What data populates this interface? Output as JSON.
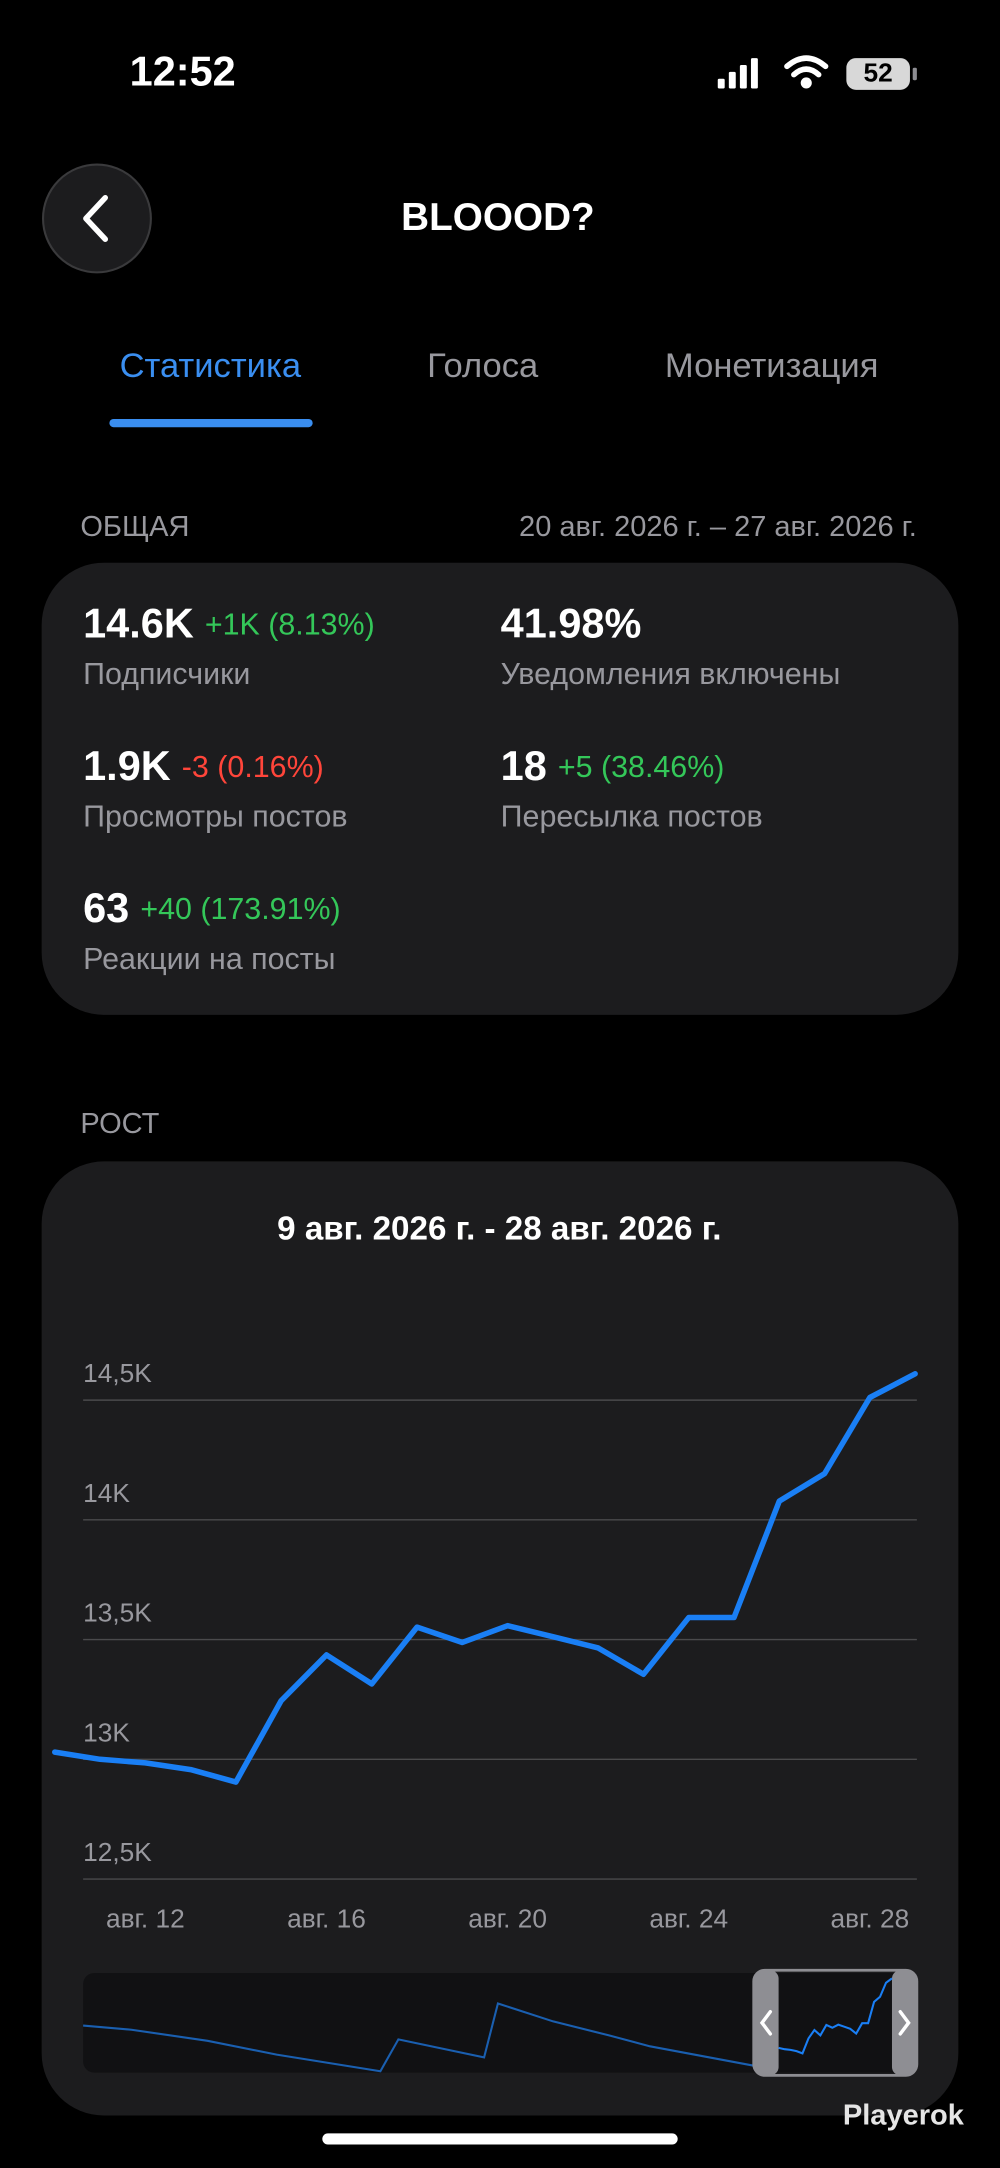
{
  "status_bar": {
    "time": "12:52",
    "battery": "52"
  },
  "header": {
    "title": "BLOOOD?"
  },
  "tabs": [
    "Статистика",
    "Голоса",
    "Монетизация"
  ],
  "overview": {
    "section_title": "ОБЩАЯ",
    "date_range": "20 авг. 2026 г. – 27 авг. 2026 г.",
    "stats": [
      {
        "value": "14.6K",
        "change": "+1K (8.13%)",
        "label": "Подписчики"
      },
      {
        "value": "41.98%",
        "label": "Уведомления включены"
      },
      {
        "value": "1.9K",
        "change": "-3 (0.16%)",
        "label": "Просмотры постов"
      },
      {
        "value": "18",
        "change": "+5 (38.46%)",
        "label": "Пересылка постов"
      },
      {
        "value": "63",
        "change": "+40 (173.91%)",
        "label": "Реакции на посты"
      }
    ]
  },
  "growth_section_title": "РОСТ",
  "chart_data": {
    "type": "line",
    "title": "9 авг. 2026 г. - 28 авг. 2026 г.",
    "categories": [
      null,
      null,
      "авг. 12",
      null,
      null,
      null,
      "авг. 16",
      null,
      null,
      null,
      "авг. 20",
      null,
      null,
      null,
      "авг. 24",
      null,
      null,
      null,
      "авг. 28",
      null
    ],
    "values": [
      13030,
      13000,
      12985,
      12957,
      12905,
      13245,
      13436,
      13315,
      13552,
      13488,
      13558,
      13512,
      13465,
      13355,
      13592,
      13592,
      14078,
      14193,
      14511,
      14610
    ],
    "color": "#1a7ff5",
    "ylim": [
      12500,
      14700
    ],
    "yticks": [
      {
        "value": 12500,
        "label": "12,5K"
      },
      {
        "value": 13000,
        "label": "13K"
      },
      {
        "value": 13500,
        "label": "13,5K"
      },
      {
        "value": 14000,
        "label": "14K"
      },
      {
        "value": 14500,
        "label": "14,5K"
      }
    ],
    "grid": true
  },
  "watermark": "Playerok"
}
